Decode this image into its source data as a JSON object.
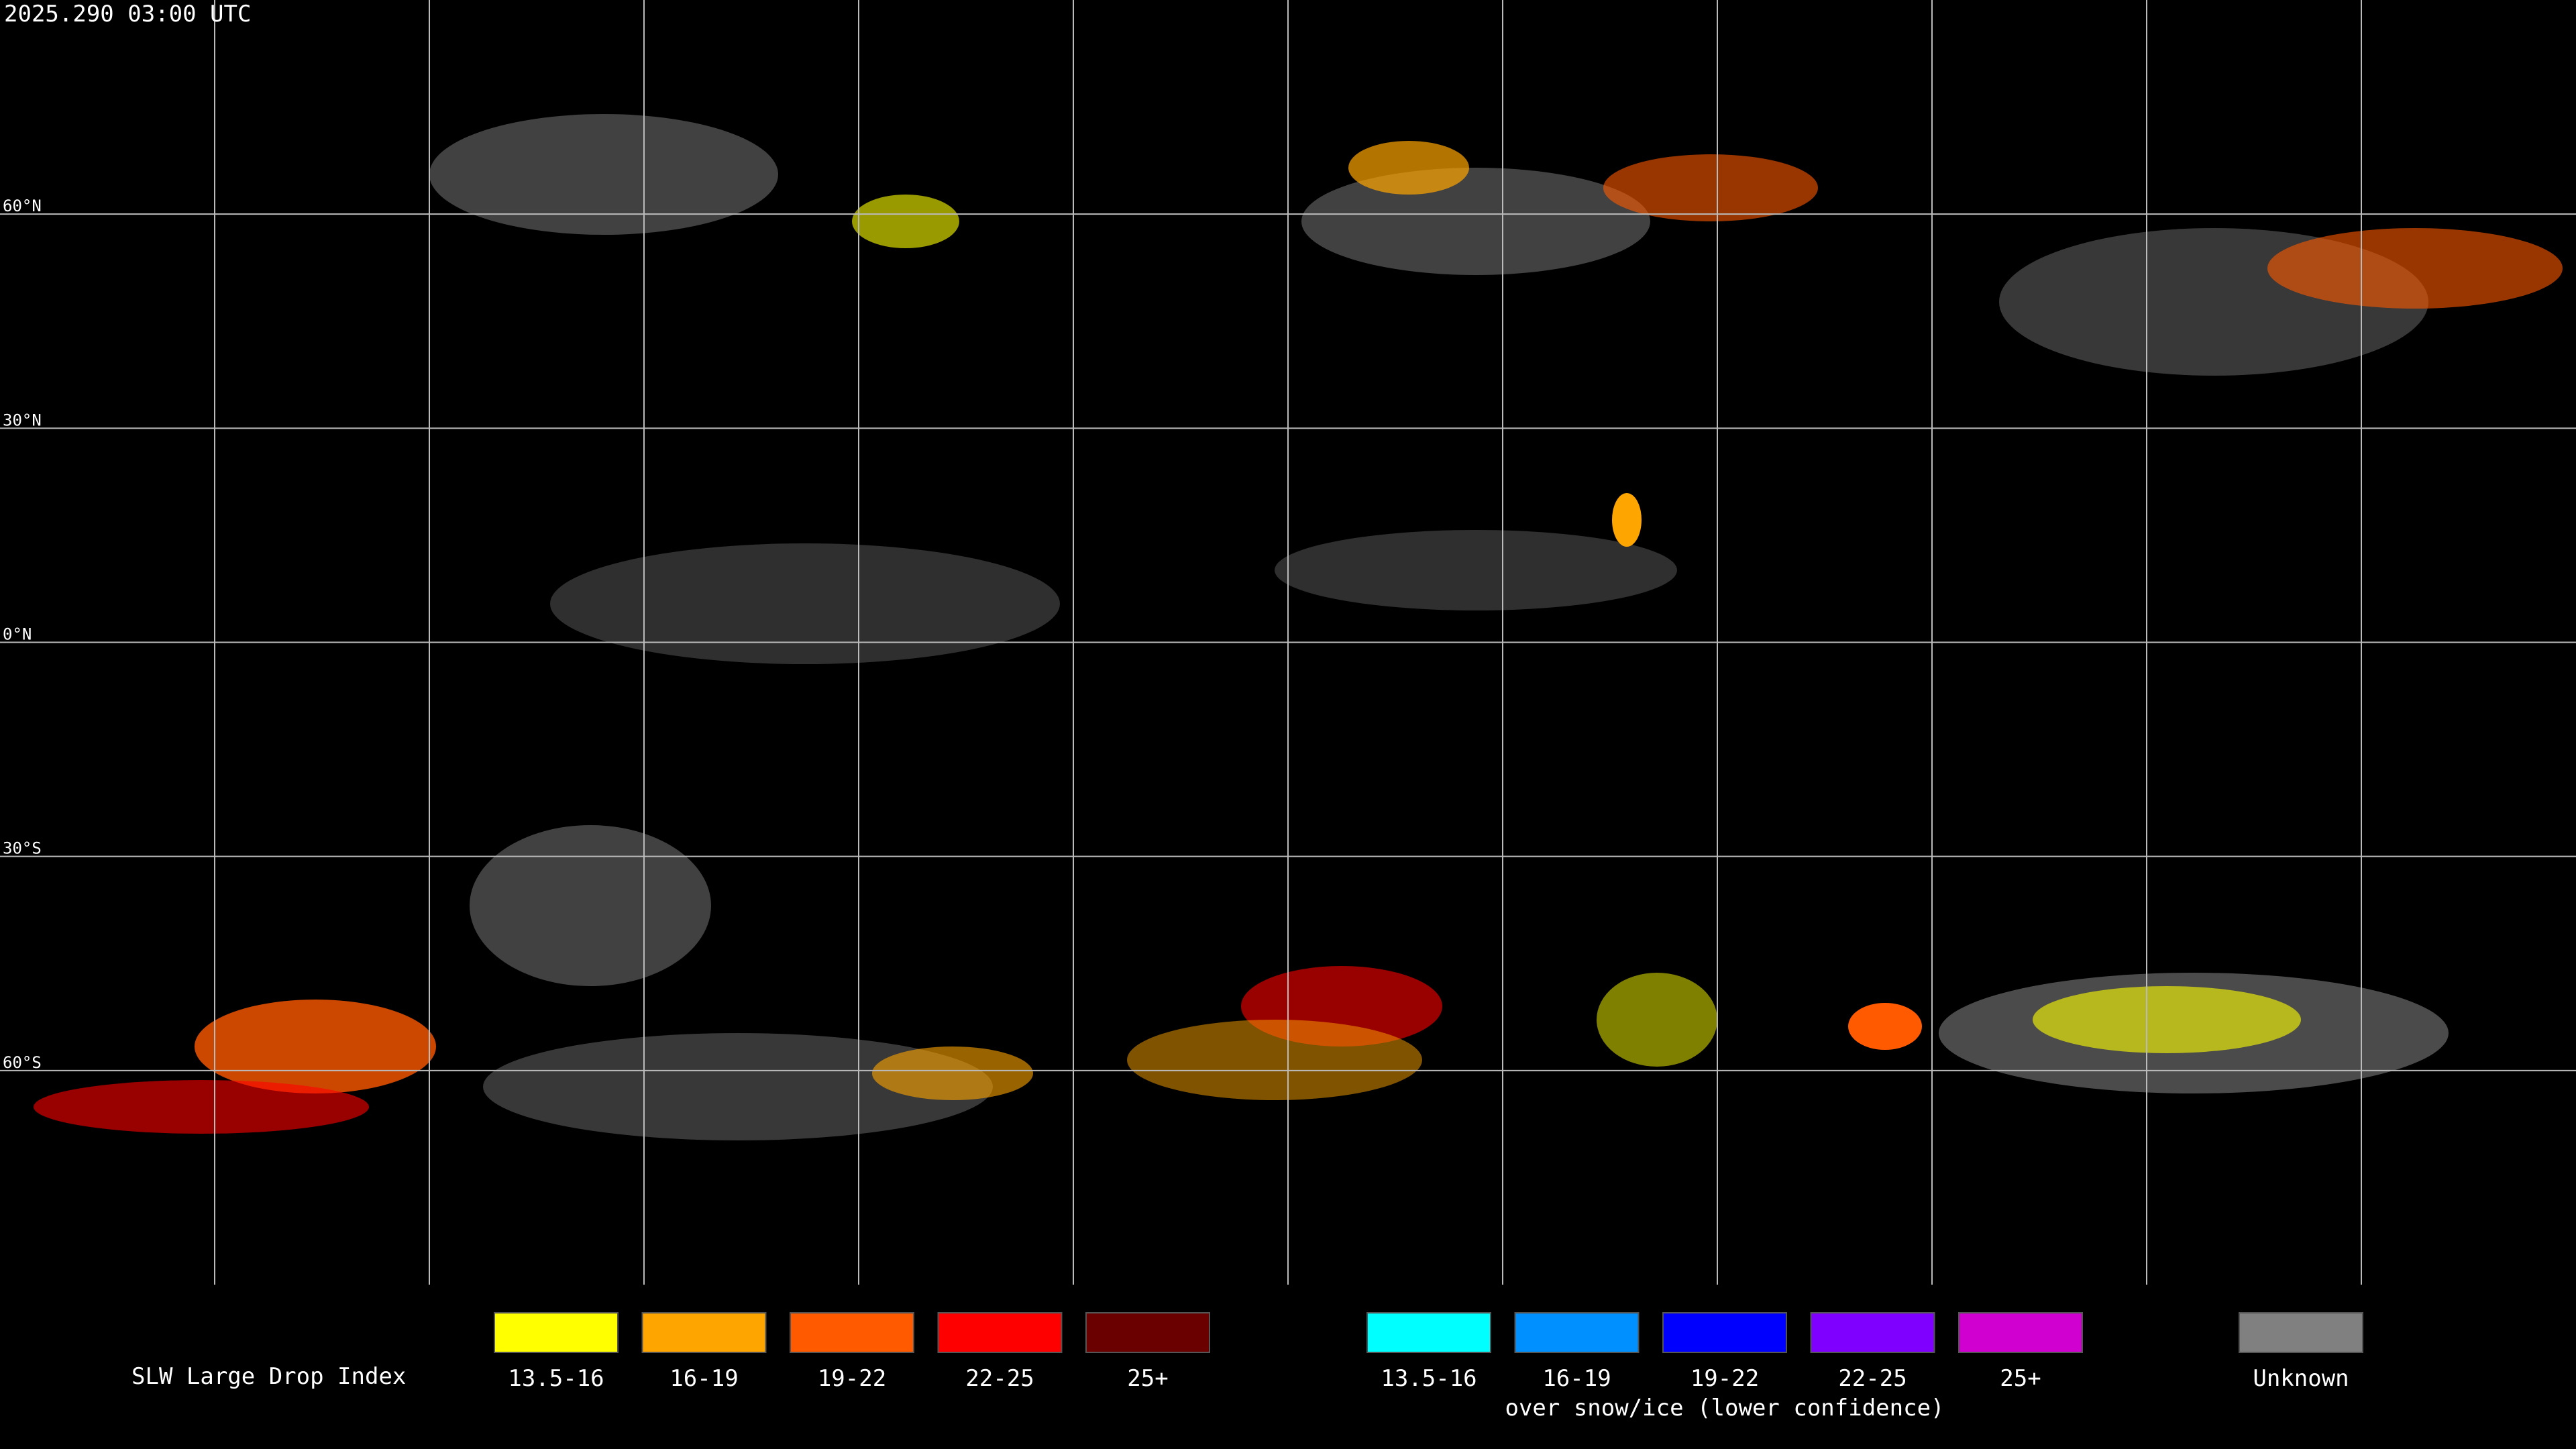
{
  "header": {
    "title": "2025.290 03:00 UTC"
  },
  "map": {
    "lat_labels": [
      "60°N",
      "30°N",
      "0°N",
      "30°S",
      "60°S"
    ]
  },
  "legend": {
    "label": "SLW Large Drop Index",
    "groups": [
      {
        "items": [
          {
            "label": "13.5-16",
            "color": "#ffff00"
          },
          {
            "label": "16-19",
            "color": "#ffa500"
          },
          {
            "label": "19-22",
            "color": "#ff5a00"
          },
          {
            "label": "22-25",
            "color": "#ff0000"
          },
          {
            "label": "25+",
            "color": "#6b0000"
          }
        ]
      },
      {
        "subtitle": "over snow/ice (lower confidence)",
        "items": [
          {
            "label": "13.5-16",
            "color": "#00ffff"
          },
          {
            "label": "16-19",
            "color": "#0090ff"
          },
          {
            "label": "19-22",
            "color": "#0000ff"
          },
          {
            "label": "22-25",
            "color": "#8000ff"
          },
          {
            "label": "25+",
            "color": "#d000d0"
          }
        ]
      },
      {
        "items": [
          {
            "label": "Unknown",
            "color": "#808080"
          }
        ]
      }
    ]
  }
}
